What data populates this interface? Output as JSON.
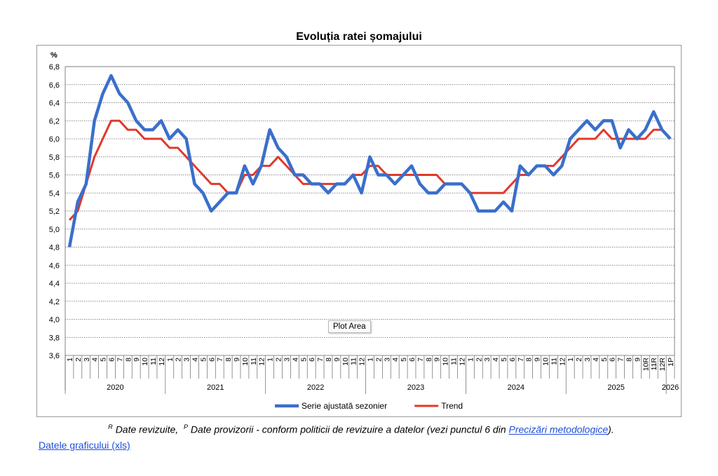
{
  "chart_data": {
    "type": "line",
    "title": "Evoluția ratei șomajului",
    "ylabel": "%",
    "ylim": [
      3.6,
      6.8
    ],
    "yticks": [
      "6,8",
      "6,6",
      "6,4",
      "6,2",
      "6,0",
      "5,8",
      "5,6",
      "5,4",
      "5,2",
      "5,0",
      "4,8",
      "4,6",
      "4,4",
      "4,2",
      "4,0",
      "3,8",
      "3,6"
    ],
    "categories": [
      "1",
      "2",
      "3",
      "4",
      "5",
      "6",
      "7",
      "8",
      "9",
      "10",
      "11",
      "12",
      "1",
      "2",
      "3",
      "4",
      "5",
      "6",
      "7",
      "8",
      "9",
      "10",
      "11",
      "12",
      "1",
      "2",
      "3",
      "4",
      "5",
      "6",
      "7",
      "8",
      "9",
      "10",
      "11",
      "12",
      "1",
      "2",
      "3",
      "4",
      "5",
      "6",
      "7",
      "8",
      "9",
      "10",
      "11",
      "12",
      "1",
      "2",
      "3",
      "4",
      "5",
      "6",
      "7",
      "8",
      "9",
      "10",
      "11",
      "12",
      "1",
      "2",
      "3",
      "4",
      "5",
      "6",
      "7",
      "8",
      "9",
      "10R",
      "11R",
      "12R",
      "1P"
    ],
    "years": [
      "2020",
      "2021",
      "2022",
      "2023",
      "2024",
      "2025",
      "2026"
    ],
    "series": [
      {
        "name": "Serie ajustată sezonier",
        "color": "#3a6fcb",
        "values": [
          4.8,
          5.3,
          5.5,
          6.2,
          6.5,
          6.7,
          6.5,
          6.4,
          6.2,
          6.1,
          6.1,
          6.2,
          6.0,
          6.1,
          6.0,
          5.5,
          5.4,
          5.2,
          5.3,
          5.4,
          5.4,
          5.7,
          5.5,
          5.7,
          6.1,
          5.9,
          5.8,
          5.6,
          5.6,
          5.5,
          5.5,
          5.4,
          5.5,
          5.5,
          5.6,
          5.4,
          5.8,
          5.6,
          5.6,
          5.5,
          5.6,
          5.7,
          5.5,
          5.4,
          5.4,
          5.5,
          5.5,
          5.5,
          5.4,
          5.2,
          5.2,
          5.2,
          5.3,
          5.2,
          5.7,
          5.6,
          5.7,
          5.7,
          5.6,
          5.7,
          6.0,
          6.1,
          6.2,
          6.1,
          6.2,
          6.2,
          5.9,
          6.1,
          6.0,
          6.1,
          6.3,
          6.1,
          6.0
        ]
      },
      {
        "name": "Trend",
        "color": "#e0392b",
        "values": [
          5.1,
          5.2,
          5.5,
          5.8,
          6.0,
          6.2,
          6.2,
          6.1,
          6.1,
          6.0,
          6.0,
          6.0,
          5.9,
          5.9,
          5.8,
          5.7,
          5.6,
          5.5,
          5.5,
          5.4,
          5.4,
          5.6,
          5.6,
          5.7,
          5.7,
          5.8,
          5.7,
          5.6,
          5.5,
          5.5,
          5.5,
          5.5,
          5.5,
          5.5,
          5.6,
          5.6,
          5.7,
          5.7,
          5.6,
          5.6,
          5.6,
          5.6,
          5.6,
          5.6,
          5.6,
          5.5,
          5.5,
          5.5,
          5.4,
          5.4,
          5.4,
          5.4,
          5.4,
          5.5,
          5.6,
          5.6,
          5.7,
          5.7,
          5.7,
          5.8,
          5.9,
          6.0,
          6.0,
          6.0,
          6.1,
          6.0,
          6.0,
          6.0,
          6.0,
          6.0,
          6.1,
          6.1,
          6.0
        ]
      }
    ],
    "legend_position": "bottom-center",
    "grid": true
  },
  "tooltip": "Plot Area",
  "footnote": {
    "r_mark": "R",
    "r_text": "Date revizuite,",
    "p_mark": "P",
    "p_text": "Date provizorii - conform politicii de revizuire a datelor (vezi punctul 6 din",
    "link_text": "Precizări metodologice",
    "end_text": ")."
  },
  "data_link": "Datele graficului (xls)"
}
